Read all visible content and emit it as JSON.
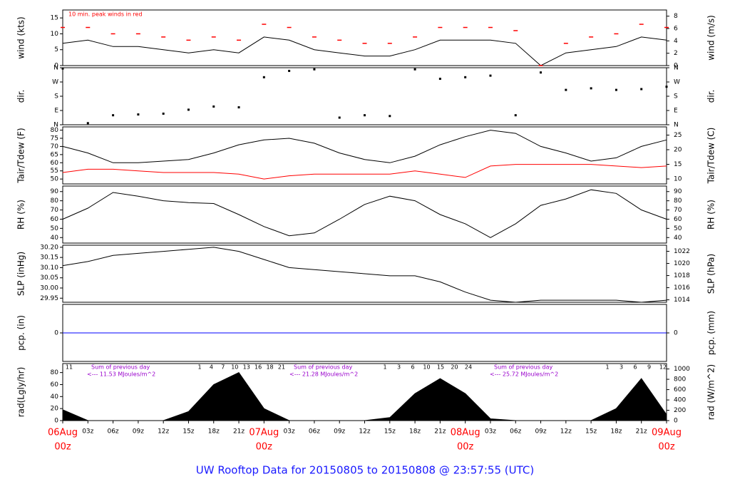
{
  "title": "UW Rooftop Data for 20150805  to  20150808 @ 23:57:55  (UTC)",
  "chart_data": [
    {
      "type": "line",
      "ylabel": "wind (kts)",
      "y2label": "wind (m/s)",
      "note": "10 min. peak winds in red",
      "xlim": [
        0,
        72
      ],
      "x": [
        0,
        3,
        6,
        9,
        12,
        15,
        18,
        21,
        24,
        27,
        30,
        33,
        36,
        39,
        42,
        45,
        48,
        51,
        54,
        57,
        60,
        63,
        66,
        69,
        72
      ],
      "ylim": [
        0,
        17.5
      ],
      "yticks": [
        0,
        5,
        10,
        15
      ],
      "y2lim": [
        0,
        9.0
      ],
      "y2ticks": [
        0,
        2,
        4,
        6,
        8
      ],
      "series": [
        {
          "color": "#000000",
          "values": [
            7,
            8,
            6,
            6,
            5,
            4,
            5,
            4,
            9,
            8,
            5,
            4,
            3,
            3,
            5,
            8,
            8,
            8,
            7,
            0,
            4,
            5,
            6,
            9,
            8
          ]
        },
        {
          "color": "#ff0000",
          "marker": "dash",
          "values": [
            12,
            12,
            10,
            10,
            9,
            8,
            9,
            8,
            13,
            12,
            9,
            8,
            7,
            7,
            9,
            12,
            12,
            12,
            11,
            0,
            7,
            9,
            10,
            13,
            12
          ]
        }
      ]
    },
    {
      "type": "scatter",
      "ylabel": "dir.",
      "y2label": "dir.",
      "xlim": [
        0,
        72
      ],
      "x": [
        0,
        3,
        6,
        9,
        12,
        15,
        18,
        21,
        24,
        27,
        30,
        33,
        36,
        39,
        42,
        45,
        48,
        51,
        54,
        57,
        60,
        63,
        66,
        69,
        72
      ],
      "ylim": [
        0,
        360
      ],
      "yticks": [
        {
          "value": 0,
          "label": "N"
        },
        {
          "value": 90,
          "label": "E"
        },
        {
          "value": 180,
          "label": "S"
        },
        {
          "value": 270,
          "label": "W"
        },
        {
          "value": 360,
          "label": "N"
        }
      ],
      "y2lim": [
        0,
        360
      ],
      "y2ticks": [
        {
          "value": 0,
          "label": "N"
        },
        {
          "value": 90,
          "label": "E"
        },
        {
          "value": 180,
          "label": "S"
        },
        {
          "value": 270,
          "label": "W"
        },
        {
          "value": 360,
          "label": "N"
        }
      ],
      "series": [
        {
          "color": "#000000",
          "values": [
            355,
            10,
            60,
            65,
            70,
            95,
            115,
            110,
            300,
            340,
            350,
            45,
            60,
            55,
            350,
            290,
            300,
            310,
            60,
            330,
            220,
            230,
            220,
            225,
            240
          ]
        }
      ]
    },
    {
      "type": "line",
      "ylabel": "Tair/Tdew (F)",
      "y2label": "Tair/Tdew (C)",
      "xlim": [
        0,
        72
      ],
      "x": [
        0,
        3,
        6,
        9,
        12,
        15,
        18,
        21,
        24,
        27,
        30,
        33,
        36,
        39,
        42,
        45,
        48,
        51,
        54,
        57,
        60,
        63,
        66,
        69,
        72
      ],
      "ylim": [
        47,
        82
      ],
      "yticks": [
        50,
        55,
        60,
        65,
        70,
        75,
        80
      ],
      "y2lim": [
        8.3,
        27.8
      ],
      "y2ticks": [
        10,
        15,
        20,
        25
      ],
      "series": [
        {
          "color": "#000000",
          "values": [
            70,
            66,
            60,
            60,
            61,
            62,
            66,
            71,
            74,
            75,
            72,
            66,
            62,
            60,
            64,
            71,
            76,
            80,
            78,
            70,
            66,
            61,
            63,
            70,
            74
          ]
        },
        {
          "color": "#ff0000",
          "values": [
            54,
            56,
            56,
            55,
            54,
            54,
            54,
            53,
            50,
            52,
            53,
            53,
            53,
            53,
            55,
            53,
            51,
            58,
            59,
            59,
            59,
            59,
            58,
            57,
            58
          ]
        }
      ]
    },
    {
      "type": "line",
      "ylabel": "RH (%)",
      "y2label": "RH (%)",
      "xlim": [
        0,
        72
      ],
      "x": [
        0,
        3,
        6,
        9,
        12,
        15,
        18,
        21,
        24,
        27,
        30,
        33,
        36,
        39,
        42,
        45,
        48,
        51,
        54,
        57,
        60,
        63,
        66,
        69,
        72
      ],
      "ylim": [
        34,
        96
      ],
      "yticks": [
        40,
        50,
        60,
        70,
        80,
        90
      ],
      "y2lim": [
        34,
        96
      ],
      "y2ticks": [
        40,
        50,
        60,
        70,
        80,
        90
      ],
      "series": [
        {
          "color": "#000000",
          "values": [
            60,
            72,
            89,
            85,
            80,
            78,
            77,
            65,
            52,
            42,
            45,
            60,
            76,
            85,
            80,
            65,
            55,
            40,
            55,
            75,
            82,
            92,
            88,
            70,
            60
          ]
        }
      ]
    },
    {
      "type": "line",
      "ylabel": "SLP (inHg)",
      "y2label": "SLP (hPa)",
      "xlim": [
        0,
        72
      ],
      "x": [
        0,
        3,
        6,
        9,
        12,
        15,
        18,
        21,
        24,
        27,
        30,
        33,
        36,
        39,
        42,
        45,
        48,
        51,
        54,
        57,
        60,
        63,
        66,
        69,
        72
      ],
      "ylim": [
        29.93,
        30.21
      ],
      "yticks": [
        29.95,
        {
          "value": 30.0,
          "label": "30.00"
        },
        30.05,
        {
          "value": 30.1,
          "label": "30.10"
        },
        30.15,
        {
          "value": 30.2,
          "label": "30.20"
        }
      ],
      "y2lim": [
        1013.6,
        1023.0
      ],
      "y2ticks": [
        1014,
        1016,
        1018,
        1020,
        1022
      ],
      "series": [
        {
          "color": "#000000",
          "values": [
            30.11,
            30.13,
            30.16,
            30.17,
            30.18,
            30.19,
            30.2,
            30.18,
            30.14,
            30.1,
            30.09,
            30.08,
            30.07,
            30.06,
            30.06,
            30.03,
            29.98,
            29.94,
            29.93,
            29.94,
            29.94,
            29.94,
            29.94,
            29.93,
            29.94
          ]
        }
      ]
    },
    {
      "type": "line",
      "ylabel": "pcp. (in)",
      "y2label": "pcp. (mm)",
      "xlim": [
        0,
        72
      ],
      "x": [
        0,
        3,
        6,
        9,
        12,
        15,
        18,
        21,
        24,
        27,
        30,
        33,
        36,
        39,
        42,
        45,
        48,
        51,
        54,
        57,
        60,
        63,
        66,
        69,
        72
      ],
      "ylim": [
        -1,
        1
      ],
      "yticks": [
        0
      ],
      "y2lim": [
        -25.4,
        25.4
      ],
      "y2ticks": [
        0
      ],
      "series": [
        {
          "color": "#0000ff",
          "values": [
            0,
            0,
            0,
            0,
            0,
            0,
            0,
            0,
            0,
            0,
            0,
            0,
            0,
            0,
            0,
            0,
            0,
            0,
            0,
            0,
            0,
            0,
            0,
            0,
            0
          ]
        }
      ]
    },
    {
      "type": "area",
      "ylabel": "rad(Lgly/hr)",
      "y2label": "rad (W/m^2)",
      "xlim": [
        0,
        72
      ],
      "x": [
        0,
        3,
        6,
        9,
        12,
        15,
        18,
        21,
        24,
        27,
        30,
        33,
        36,
        39,
        42,
        45,
        48,
        51,
        54,
        57,
        60,
        63,
        66,
        69,
        72
      ],
      "ylim": [
        0,
        95
      ],
      "yticks": [
        0,
        20,
        40,
        60,
        80
      ],
      "y2lim": [
        0,
        1105
      ],
      "y2ticks": [
        0,
        200,
        400,
        600,
        800,
        1000
      ],
      "series": [
        {
          "color": "#000000",
          "values": [
            18,
            0,
            0,
            0,
            0,
            15,
            60,
            80,
            20,
            0,
            0,
            0,
            0,
            5,
            45,
            70,
            45,
            3,
            0,
            0,
            0,
            0,
            20,
            70,
            10
          ]
        }
      ],
      "daily_sums": [
        {
          "label": "Sum of previous day",
          "text": "<--- 11.53 MJoules/m^2"
        },
        {
          "label": "Sum of previous day",
          "text": "<--- 21.28 MJoules/m^2"
        },
        {
          "label": "Sum of previous day",
          "text": "<--- 25.72 MJoules/m^2"
        }
      ],
      "hour_labels": [
        [
          "11"
        ],
        [
          "1",
          "4",
          "7",
          "10",
          "13",
          "16",
          "18",
          "21"
        ],
        [
          "1",
          "3",
          "6",
          "10",
          "15",
          "20",
          "24"
        ],
        [
          "1",
          "3",
          "6",
          "9",
          "12"
        ]
      ],
      "xticks": [
        {
          "value": 0,
          "label": "06Aug",
          "sublabel": "00z"
        },
        {
          "value": 3,
          "label": "03z"
        },
        {
          "value": 6,
          "label": "06z"
        },
        {
          "value": 9,
          "label": "09z"
        },
        {
          "value": 12,
          "label": "12z"
        },
        {
          "value": 15,
          "label": "15z"
        },
        {
          "value": 18,
          "label": "18z"
        },
        {
          "value": 21,
          "label": "21z"
        },
        {
          "value": 24,
          "label": "07Aug",
          "sublabel": "00z"
        },
        {
          "value": 27,
          "label": "03z"
        },
        {
          "value": 30,
          "label": "06z"
        },
        {
          "value": 33,
          "label": "09z"
        },
        {
          "value": 36,
          "label": "12z"
        },
        {
          "value": 39,
          "label": "15z"
        },
        {
          "value": 42,
          "label": "18z"
        },
        {
          "value": 45,
          "label": "21z"
        },
        {
          "value": 48,
          "label": "08Aug",
          "sublabel": "00z"
        },
        {
          "value": 51,
          "label": "03z"
        },
        {
          "value": 54,
          "label": "06z"
        },
        {
          "value": 57,
          "label": "09z"
        },
        {
          "value": 60,
          "label": "12z"
        },
        {
          "value": 63,
          "label": "15z"
        },
        {
          "value": 66,
          "label": "18z"
        },
        {
          "value": 69,
          "label": "21z"
        },
        {
          "value": 72,
          "label": "09Aug",
          "sublabel": "00z"
        }
      ]
    }
  ]
}
